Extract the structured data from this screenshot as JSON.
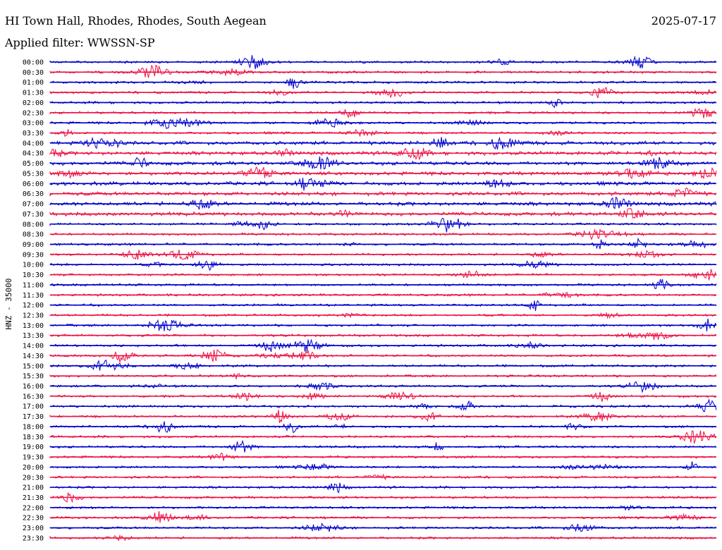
{
  "header": {
    "title": "HI Town Hall, Rhodes, Rhodes, South Aegean",
    "date": "2025-07-17",
    "filter": "Applied filter: WWSSN-SP"
  },
  "chart_data": {
    "type": "line",
    "title": "HI Town Hall, Rhodes, Rhodes, South Aegean",
    "ylabel": "HNZ - 35000",
    "xlabel": "",
    "grid": false,
    "colors": {
      "even_trace": "#0000cc",
      "odd_trace": "#ee1144"
    },
    "tick_labels": [
      "00:00",
      "00:30",
      "01:00",
      "01:30",
      "02:00",
      "02:30",
      "03:00",
      "03:30",
      "04:00",
      "04:30",
      "05:00",
      "05:30",
      "06:00",
      "06:30",
      "07:00",
      "07:30",
      "08:00",
      "08:30",
      "09:00",
      "09:30",
      "10:00",
      "10:30",
      "11:00",
      "11:30",
      "12:00",
      "12:30",
      "13:00",
      "13:30",
      "14:00",
      "14:30",
      "15:00",
      "15:30",
      "16:00",
      "16:30",
      "17:00",
      "17:30",
      "18:00",
      "18:30",
      "19:00",
      "19:30",
      "20:00",
      "20:30",
      "21:00",
      "21:30",
      "22:00",
      "22:30",
      "23:00",
      "23:30"
    ]
  }
}
